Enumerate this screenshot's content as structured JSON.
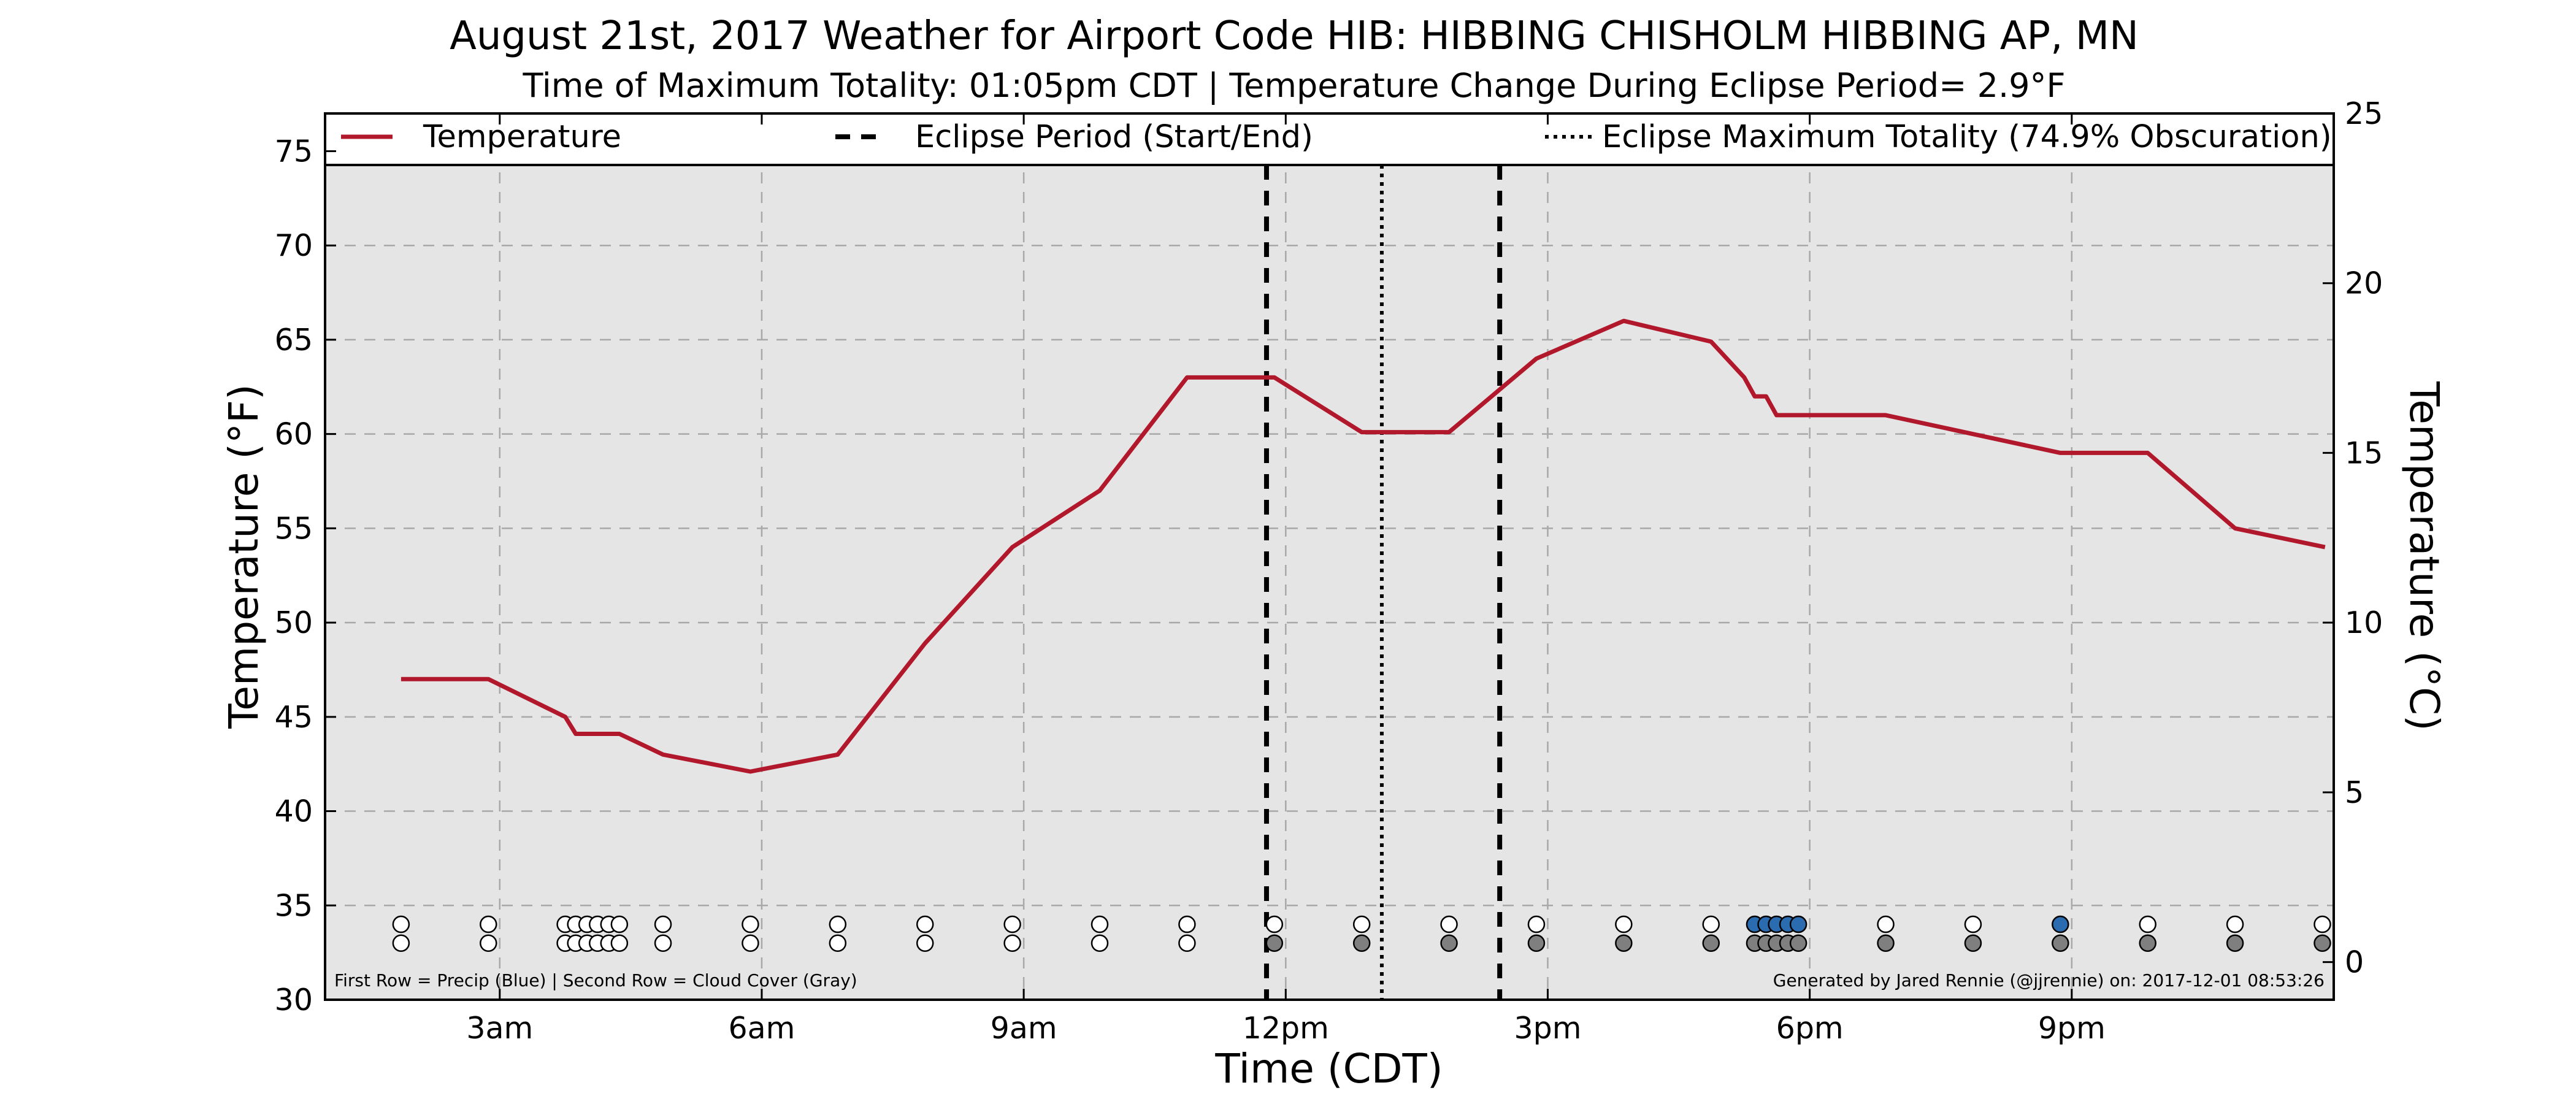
{
  "chart_data": {
    "type": "line",
    "title": "August 21st, 2017 Weather for Airport Code HIB: HIBBING CHISHOLM HIBBING AP, MN",
    "subtitle": "Time of Maximum Totality: 01:05pm CDT | Temperature Change During Eclipse Period= 2.9°F",
    "xlabel": "Time (CDT)",
    "ylabel": "Temperature (°F)",
    "ylabel_right": "Temperature (°C)",
    "xlim": [
      1.0,
      24.0
    ],
    "ylim": [
      30,
      77
    ],
    "ylim_right": [
      -1.11,
      25.0
    ],
    "x_ticks": [
      {
        "value": 3,
        "label": "3am"
      },
      {
        "value": 6,
        "label": "6am"
      },
      {
        "value": 9,
        "label": "9am"
      },
      {
        "value": 12,
        "label": "12pm"
      },
      {
        "value": 15,
        "label": "3pm"
      },
      {
        "value": 18,
        "label": "6pm"
      },
      {
        "value": 21,
        "label": "9pm"
      }
    ],
    "y_ticks": [
      30,
      35,
      40,
      45,
      50,
      55,
      60,
      65,
      70,
      75
    ],
    "y_ticks_right": [
      0,
      5,
      10,
      15,
      20,
      25
    ],
    "grid": true,
    "legend_position": "top",
    "series": [
      {
        "name": "Temperature",
        "color": "#b2182b",
        "x": [
          1.87,
          2.87,
          3.75,
          3.87,
          4.37,
          4.87,
          5.87,
          6.87,
          7.87,
          8.87,
          9.87,
          10.87,
          11.87,
          12.87,
          13.87,
          14.87,
          15.87,
          16.87,
          17.25,
          17.37,
          17.5,
          17.62,
          17.75,
          18.87,
          19.87,
          20.87,
          21.87,
          22.87,
          23.9
        ],
        "y": [
          47,
          47,
          45,
          44.1,
          44.1,
          43,
          42.1,
          43,
          48.9,
          54,
          57,
          63,
          63,
          60.1,
          60.1,
          64,
          66,
          64.9,
          63,
          62,
          62,
          61,
          61,
          61,
          60,
          59,
          59,
          55,
          54
        ]
      }
    ],
    "eclipse": {
      "start_x": 11.78,
      "end_x": 14.45,
      "max_x": 13.1,
      "legend_start_end": "Eclipse Period (Start/End)",
      "legend_max": "Eclipse Maximum Totality (74.9% Obscuration)"
    },
    "markers": {
      "precip_row_y": 34.0,
      "cloud_row_y": 33.0,
      "precip_color": "#2b6cb0",
      "cloud_color": "#7f7f7f",
      "empty_color": "#ffffff",
      "precip_x": [
        1.87,
        2.87,
        3.75,
        3.87,
        4.0,
        4.12,
        4.25,
        4.37,
        4.87,
        5.87,
        6.87,
        7.87,
        8.87,
        9.87,
        10.87,
        11.87,
        12.87,
        13.87,
        14.87,
        15.87,
        16.87,
        17.37,
        17.5,
        17.62,
        17.75,
        17.87,
        18.87,
        19.87,
        20.87,
        21.87,
        22.87,
        23.87
      ],
      "precip_filled": [
        false,
        false,
        false,
        false,
        false,
        false,
        false,
        false,
        false,
        false,
        false,
        false,
        false,
        false,
        false,
        false,
        false,
        false,
        false,
        false,
        false,
        true,
        true,
        true,
        true,
        true,
        false,
        false,
        true,
        false,
        false,
        false
      ],
      "cloud_x": [
        1.87,
        2.87,
        3.75,
        3.87,
        4.0,
        4.12,
        4.25,
        4.37,
        4.87,
        5.87,
        6.87,
        7.87,
        8.87,
        9.87,
        10.87,
        11.87,
        12.87,
        13.87,
        14.87,
        15.87,
        16.87,
        17.37,
        17.5,
        17.62,
        17.75,
        17.87,
        18.87,
        19.87,
        20.87,
        21.87,
        22.87,
        23.87
      ],
      "cloud_filled": [
        false,
        false,
        false,
        false,
        false,
        false,
        false,
        false,
        false,
        false,
        false,
        false,
        false,
        false,
        false,
        true,
        true,
        true,
        true,
        true,
        true,
        true,
        true,
        true,
        true,
        true,
        true,
        true,
        true,
        true,
        true,
        true
      ]
    },
    "note_left": "First Row = Precip (Blue) | Second Row = Cloud Cover (Gray)",
    "note_right": "Generated by Jared Rennie (@jjrennie) on: 2017-12-01 08:53:26"
  }
}
